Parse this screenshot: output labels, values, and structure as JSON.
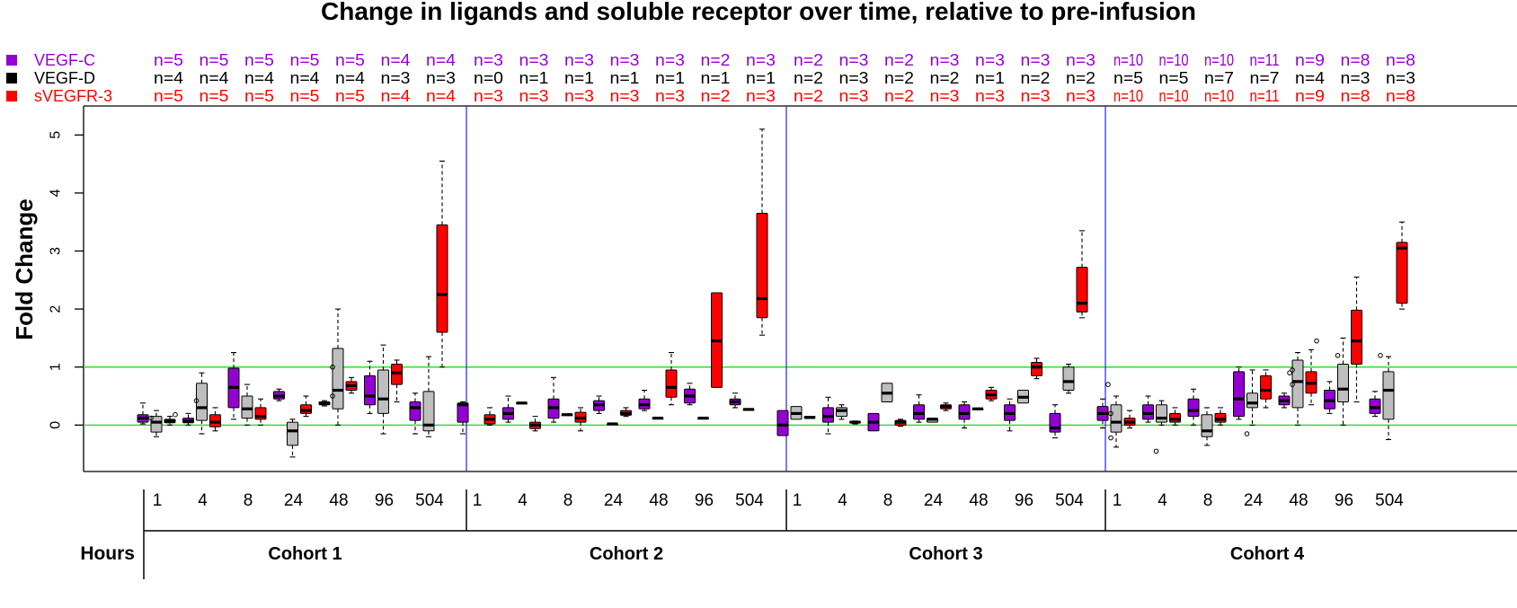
{
  "chart_data": {
    "type": "box",
    "title": "Change in ligands and soluble receptor over time, relative to pre-infusion",
    "ylabel": "Fold Change",
    "xlabel": "Hours",
    "ylim": [
      -0.8,
      5.5
    ],
    "yticks": [
      0,
      1,
      2,
      3,
      4,
      5
    ],
    "reference_lines": [
      0,
      1
    ],
    "legend": [
      {
        "label": "VEGF-C",
        "color": "#9400D3"
      },
      {
        "label": "VEGF-D",
        "color": "#000000"
      },
      {
        "label": "sVEGFR-3",
        "color": "#FF0000"
      }
    ],
    "box_colors": {
      "VEGF-C": "#9400D3",
      "VEGF-D": "#BEBEBE",
      "sVEGFR-3": "#FF0000"
    },
    "hours": [
      "1",
      "4",
      "8",
      "24",
      "48",
      "96",
      "504"
    ],
    "cohorts": [
      {
        "name": "Cohort 1",
        "counts": {
          "VEGF-C": [
            "n=5",
            "n=5",
            "n=5",
            "n=5",
            "n=5",
            "n=4",
            "n=4"
          ],
          "VEGF-D": [
            "n=4",
            "n=4",
            "n=4",
            "n=4",
            "n=4",
            "n=3",
            "n=3"
          ],
          "sVEGFR-3": [
            "n=5",
            "n=5",
            "n=5",
            "n=5",
            "n=5",
            "n=4",
            "n=4"
          ]
        },
        "boxes": {
          "VEGF-C": [
            [
              0.02,
              0.05,
              0.12,
              0.18,
              0.38
            ],
            [
              0.0,
              0.04,
              0.07,
              0.12,
              0.2
            ],
            [
              0.1,
              0.3,
              0.65,
              0.98,
              1.25
            ],
            [
              0.42,
              0.45,
              0.5,
              0.58,
              0.62
            ],
            [
              0.33,
              0.35,
              0.38,
              0.4,
              0.42
            ],
            [
              0.2,
              0.35,
              0.5,
              0.85,
              1.1
            ],
            [
              -0.15,
              0.08,
              0.3,
              0.4,
              0.55
            ]
          ],
          "VEGF-D": [
            [
              -0.2,
              -0.12,
              0.05,
              0.15,
              0.25
            ],
            [
              -0.15,
              0.08,
              0.3,
              0.72,
              0.9
            ],
            [
              0.0,
              0.12,
              0.28,
              0.5,
              0.7
            ],
            [
              -0.55,
              -0.35,
              -0.1,
              0.05,
              0.1
            ],
            [
              0.0,
              0.28,
              0.6,
              1.32,
              2.0
            ],
            [
              -0.15,
              0.2,
              0.45,
              0.95,
              1.38
            ],
            [
              -0.2,
              -0.1,
              0.0,
              0.58,
              1.18
            ]
          ],
          "sVEGFR-3": [
            [
              0.0,
              0.04,
              0.07,
              0.1,
              0.15
            ],
            [
              -0.1,
              -0.03,
              0.05,
              0.18,
              0.3
            ],
            [
              0.0,
              0.1,
              0.15,
              0.3,
              0.45
            ],
            [
              0.15,
              0.2,
              0.25,
              0.35,
              0.5
            ],
            [
              0.55,
              0.6,
              0.68,
              0.75,
              0.82
            ],
            [
              0.4,
              0.7,
              0.9,
              1.05,
              1.12
            ],
            [
              1.0,
              1.6,
              2.25,
              3.45,
              4.55
            ]
          ]
        },
        "outliers": {
          "VEGF-C": [
            [],
            [],
            [],
            [],
            [],
            [],
            []
          ],
          "VEGF-D": [
            [
              0.12
            ],
            [
              0.42
            ],
            [],
            [],
            [
              1.0,
              0.5
            ],
            [],
            []
          ],
          "sVEGFR-3": [
            [
              0.18
            ],
            [],
            [],
            [],
            [],
            [],
            []
          ]
        }
      },
      {
        "name": "Cohort 2",
        "counts": {
          "VEGF-C": [
            "n=3",
            "n=3",
            "n=3",
            "n=3",
            "n=3",
            "n=2",
            "n=3"
          ],
          "VEGF-D": [
            "n=0",
            "n=1",
            "n=1",
            "n=1",
            "n=1",
            "n=1",
            "n=1"
          ],
          "sVEGFR-3": [
            "n=3",
            "n=3",
            "n=3",
            "n=3",
            "n=3",
            "n=2",
            "n=3"
          ]
        },
        "boxes": {
          "VEGF-C": [
            [
              -0.15,
              0.05,
              0.35,
              0.38,
              0.4
            ],
            [
              0.05,
              0.1,
              0.2,
              0.3,
              0.5
            ],
            [
              0.05,
              0.12,
              0.3,
              0.45,
              0.82
            ],
            [
              0.2,
              0.25,
              0.35,
              0.42,
              0.5
            ],
            [
              0.25,
              0.28,
              0.35,
              0.45,
              0.6
            ],
            [
              0.35,
              0.38,
              0.5,
              0.62,
              0.72
            ],
            [
              0.3,
              0.35,
              0.4,
              0.45,
              0.55
            ]
          ],
          "VEGF-D": [
            null,
            [
              0.38,
              0.38,
              0.38,
              0.38,
              0.38
            ],
            [
              0.18,
              0.18,
              0.18,
              0.18,
              0.18
            ],
            [
              0.02,
              0.02,
              0.02,
              0.02,
              0.02
            ],
            [
              0.12,
              0.12,
              0.12,
              0.12,
              0.12
            ],
            [
              0.12,
              0.12,
              0.12,
              0.12,
              0.12
            ],
            [
              0.27,
              0.27,
              0.27,
              0.27,
              0.27
            ]
          ],
          "sVEGFR-3": [
            [
              0.0,
              0.02,
              0.1,
              0.18,
              0.3
            ],
            [
              -0.1,
              -0.06,
              0.0,
              0.05,
              0.15
            ],
            [
              -0.1,
              0.05,
              0.12,
              0.22,
              0.3
            ],
            [
              0.15,
              0.17,
              0.2,
              0.25,
              0.3
            ],
            [
              0.35,
              0.48,
              0.65,
              0.95,
              1.25
            ],
            [
              0.65,
              0.65,
              1.45,
              2.28,
              2.28
            ],
            [
              1.55,
              1.85,
              2.18,
              3.65,
              5.1
            ]
          ]
        },
        "outliers": {
          "VEGF-C": [
            [],
            [],
            [],
            [],
            [],
            [],
            []
          ],
          "VEGF-D": [
            [],
            [],
            [],
            [],
            [],
            [],
            []
          ],
          "sVEGFR-3": [
            [],
            [],
            [],
            [],
            [],
            [],
            []
          ]
        }
      },
      {
        "name": "Cohort 3",
        "counts": {
          "VEGF-C": [
            "n=2",
            "n=3",
            "n=2",
            "n=3",
            "n=3",
            "n=3",
            "n=3"
          ],
          "VEGF-D": [
            "n=2",
            "n=3",
            "n=2",
            "n=2",
            "n=1",
            "n=2",
            "n=2"
          ],
          "sVEGFR-3": [
            "n=2",
            "n=3",
            "n=2",
            "n=3",
            "n=3",
            "n=3",
            "n=3"
          ]
        },
        "boxes": {
          "VEGF-C": [
            [
              -0.18,
              -0.18,
              0.0,
              0.25,
              0.25
            ],
            [
              -0.15,
              0.05,
              0.15,
              0.3,
              0.48
            ],
            [
              -0.1,
              -0.1,
              0.05,
              0.2,
              0.2
            ],
            [
              0.05,
              0.1,
              0.2,
              0.35,
              0.52
            ],
            [
              -0.05,
              0.1,
              0.2,
              0.35,
              0.4
            ],
            [
              -0.1,
              0.08,
              0.2,
              0.35,
              0.45
            ],
            [
              -0.22,
              -0.12,
              -0.05,
              0.2,
              0.35
            ]
          ],
          "VEGF-D": [
            [
              0.1,
              0.1,
              0.2,
              0.32,
              0.32
            ],
            [
              0.1,
              0.15,
              0.25,
              0.3,
              0.35
            ],
            [
              0.4,
              0.4,
              0.55,
              0.72,
              0.72
            ],
            [
              0.05,
              0.05,
              0.1,
              0.12,
              0.12
            ],
            [
              0.28,
              0.28,
              0.28,
              0.28,
              0.28
            ],
            [
              0.38,
              0.38,
              0.48,
              0.6,
              0.6
            ],
            [
              0.55,
              0.6,
              0.75,
              1.0,
              1.05
            ]
          ],
          "sVEGFR-3": [
            [
              0.12,
              0.12,
              0.13,
              0.15,
              0.15
            ],
            [
              0.02,
              0.04,
              0.05,
              0.06,
              0.07
            ],
            [
              -0.02,
              0.0,
              0.05,
              0.08,
              0.1
            ],
            [
              0.25,
              0.28,
              0.32,
              0.35,
              0.38
            ],
            [
              0.42,
              0.45,
              0.52,
              0.6,
              0.65
            ],
            [
              0.8,
              0.85,
              1.0,
              1.08,
              1.15
            ],
            [
              1.85,
              1.95,
              2.1,
              2.72,
              3.35
            ]
          ]
        },
        "outliers": {
          "VEGF-C": [
            [],
            [],
            [],
            [],
            [],
            [],
            []
          ],
          "VEGF-D": [
            [],
            [],
            [],
            [],
            [],
            [],
            []
          ],
          "sVEGFR-3": [
            [],
            [],
            [],
            [],
            [],
            [],
            []
          ]
        }
      },
      {
        "name": "Cohort 4",
        "counts": {
          "VEGF-C": [
            "n=10",
            "n=10",
            "n=10",
            "n=11",
            "n=9",
            "n=8",
            "n=8"
          ],
          "VEGF-D": [
            "n=5",
            "n=5",
            "n=7",
            "n=7",
            "n=4",
            "n=3",
            "n=3"
          ],
          "sVEGFR-3": [
            "n=10",
            "n=10",
            "n=10",
            "n=11",
            "n=9",
            "n=8",
            "n=8"
          ]
        },
        "boxes": {
          "VEGF-C": [
            [
              -0.05,
              0.08,
              0.2,
              0.32,
              0.45
            ],
            [
              0.05,
              0.1,
              0.2,
              0.35,
              0.5
            ],
            [
              0.0,
              0.15,
              0.25,
              0.45,
              0.62
            ],
            [
              0.1,
              0.15,
              0.45,
              0.92,
              1.0
            ],
            [
              0.3,
              0.35,
              0.42,
              0.5,
              0.55
            ],
            [
              0.2,
              0.28,
              0.42,
              0.6,
              0.75
            ],
            [
              0.15,
              0.2,
              0.3,
              0.45,
              0.58
            ]
          ],
          "VEGF-D": [
            [
              -0.38,
              -0.12,
              0.05,
              0.35,
              0.5
            ],
            [
              0.0,
              0.05,
              0.12,
              0.35,
              0.42
            ],
            [
              -0.35,
              -0.2,
              -0.1,
              0.18,
              0.3
            ],
            [
              0.0,
              0.3,
              0.38,
              0.55,
              0.95
            ],
            [
              0.0,
              0.3,
              0.75,
              1.12,
              1.25
            ],
            [
              0.0,
              0.4,
              0.62,
              1.05,
              1.5
            ],
            [
              -0.25,
              0.1,
              0.6,
              0.92,
              1.18
            ]
          ],
          "sVEGFR-3": [
            [
              -0.05,
              0.0,
              0.05,
              0.12,
              0.25
            ],
            [
              0.0,
              0.05,
              0.1,
              0.2,
              0.3
            ],
            [
              0.0,
              0.05,
              0.1,
              0.2,
              0.3
            ],
            [
              0.3,
              0.45,
              0.6,
              0.85,
              0.95
            ],
            [
              0.35,
              0.55,
              0.72,
              0.92,
              1.3
            ],
            [
              0.4,
              1.05,
              1.45,
              1.98,
              2.55
            ],
            [
              2.0,
              2.1,
              3.05,
              3.15,
              3.5
            ]
          ]
        },
        "outliers": {
          "VEGF-C": [
            [
              0.7
            ],
            [],
            [],
            [],
            [
              0.9
            ],
            [],
            [
              1.2
            ]
          ],
          "VEGF-D": [
            [
              0.2,
              -0.22
            ],
            [
              -0.45
            ],
            [],
            [
              -0.15
            ],
            [
              0.95,
              0.7
            ],
            [
              1.2
            ],
            []
          ],
          "sVEGFR-3": [
            [],
            [],
            [],
            [],
            [
              1.45
            ],
            [],
            []
          ]
        }
      }
    ]
  }
}
